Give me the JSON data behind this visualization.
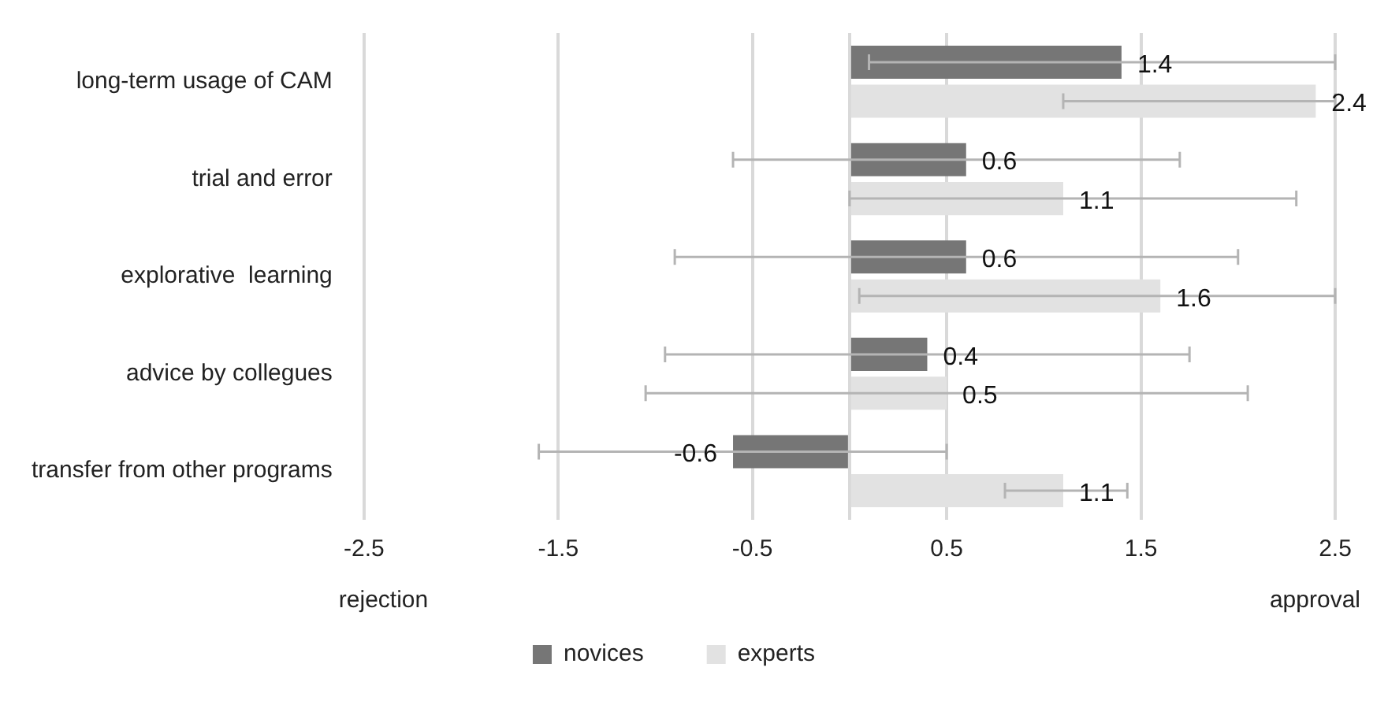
{
  "chart_data": {
    "type": "bar",
    "orientation": "horizontal",
    "categories": [
      "long-term usage of CAM",
      "trial and error",
      "explorative  learning",
      "advice by collegues",
      "transfer from other programs"
    ],
    "series": [
      {
        "name": "novices",
        "color": "#767676",
        "values": [
          1.4,
          0.6,
          0.6,
          0.4,
          -0.6
        ],
        "errors": [
          [
            0.1,
            2.5
          ],
          [
            -0.6,
            1.7
          ],
          [
            -0.9,
            2.0
          ],
          [
            -0.95,
            1.75
          ],
          [
            -1.6,
            0.5
          ]
        ]
      },
      {
        "name": "experts",
        "color": "#e2e2e2",
        "values": [
          2.4,
          1.1,
          1.6,
          0.5,
          1.1
        ],
        "errors": [
          [
            1.1,
            2.5
          ],
          [
            0.0,
            2.3
          ],
          [
            0.05,
            2.5
          ],
          [
            -1.05,
            2.05
          ],
          [
            0.8,
            1.43
          ]
        ]
      }
    ],
    "xlim": [
      -2.5,
      2.5
    ],
    "xticks": [
      -2.5,
      -1.5,
      -0.5,
      {
        "value": 0,
        "label": null
      },
      0.5,
      1.5,
      2.5
    ],
    "annotations": [
      "rejection",
      "approval"
    ],
    "data_labels": true,
    "grid": "x",
    "legend": "bottom"
  }
}
